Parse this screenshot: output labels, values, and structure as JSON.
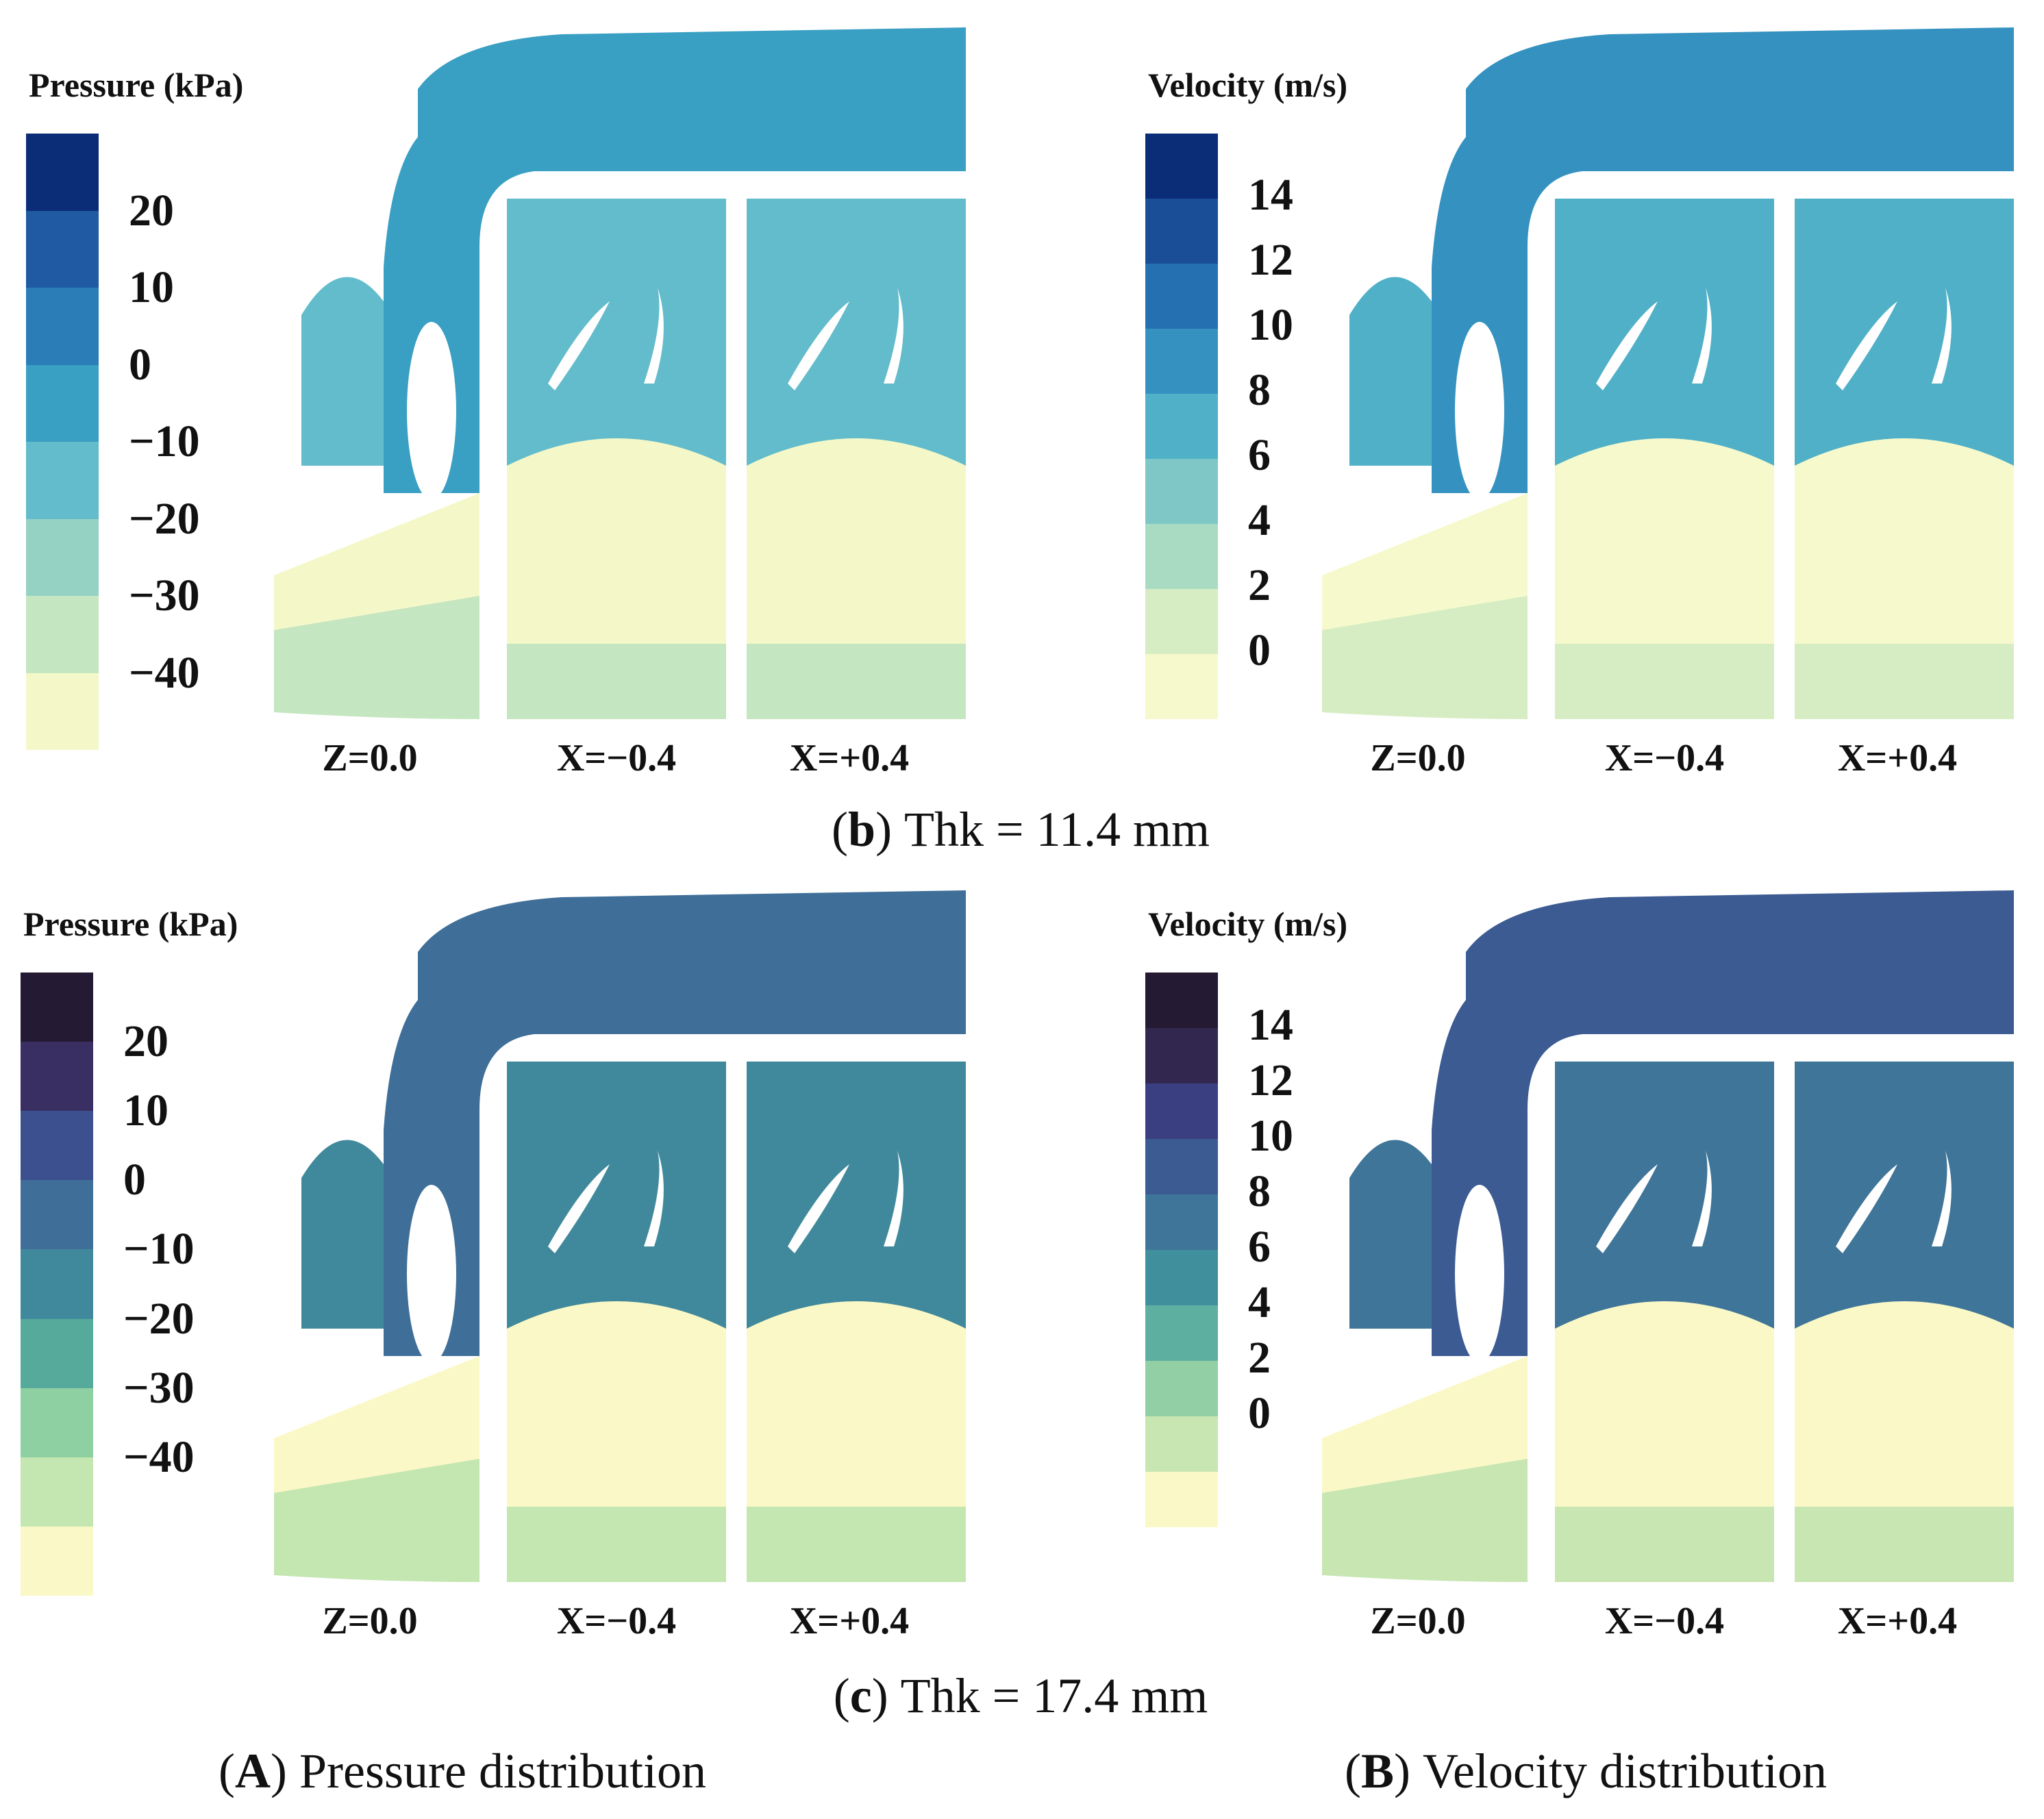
{
  "panels": [
    {
      "title": "Pressure (kPa)",
      "kind": "pressure",
      "ticks": [
        "20",
        "10",
        "0",
        "−10",
        "−20",
        "−30",
        "−40"
      ],
      "tick_values": [
        20,
        10,
        0,
        -10,
        -20,
        -30,
        -40
      ],
      "colors": [
        "#0b2d78",
        "#1f5aa3",
        "#2a7db6",
        "#399fc3",
        "#63bccb",
        "#96d2c4",
        "#c4e6c0",
        "#f4f8c9"
      ],
      "section_labels": [
        "Z=0.0",
        "X=−0.4",
        "X=+0.4"
      ]
    },
    {
      "title": "Velocity  (m/s)",
      "kind": "velocity",
      "ticks": [
        "14",
        "12",
        "10",
        "8",
        "6",
        "4",
        "2",
        "0"
      ],
      "tick_values": [
        14,
        12,
        10,
        8,
        6,
        4,
        2,
        0
      ],
      "colors": [
        "#0b2d78",
        "#1a4f98",
        "#2470b0",
        "#3592c0",
        "#4fb0c8",
        "#7ec7c6",
        "#a9dbc2",
        "#d6edc3",
        "#f6f9cc"
      ],
      "section_labels": [
        "Z=0.0",
        "X=−0.4",
        "X=+0.4"
      ]
    },
    {
      "title": "Pressure (kPa)",
      "kind": "pressure",
      "ticks": [
        "20",
        "10",
        "0",
        "−10",
        "−20",
        "−30",
        "−40"
      ],
      "tick_values": [
        20,
        10,
        0,
        -10,
        -20,
        -30,
        -40
      ],
      "colors": [
        "#251a33",
        "#3a2f63",
        "#3c4f8f",
        "#3f6f98",
        "#40899c",
        "#55aa9b",
        "#8fd0a2",
        "#c4e6b0",
        "#fbf8c8"
      ],
      "section_labels": [
        "Z=0.0",
        "X=−0.4",
        "X=+0.4"
      ]
    },
    {
      "title": "Velocity  (m/s)",
      "kind": "velocity",
      "ticks": [
        "14",
        "12",
        "10",
        "8",
        "6",
        "4",
        "2",
        "0"
      ],
      "tick_values": [
        14,
        12,
        10,
        8,
        6,
        4,
        2,
        0
      ],
      "colors": [
        "#251a33",
        "#32284f",
        "#3a3f82",
        "#3c5b92",
        "#3f7598",
        "#408f9c",
        "#5db09f",
        "#92cfa4",
        "#c7e6b2",
        "#fbf8c8"
      ],
      "section_labels": [
        "Z=0.0",
        "X=−0.4",
        "X=+0.4"
      ]
    }
  ],
  "captions": {
    "row1": {
      "letter": "b",
      "text": "Thk = 11.4 mm"
    },
    "row2": {
      "letter": "c",
      "text": "Thk = 17.4 mm"
    },
    "colA": {
      "letter": "A",
      "text": "Pressure distribution"
    },
    "colB": {
      "letter": "B",
      "text": "Velocity distribution"
    }
  }
}
